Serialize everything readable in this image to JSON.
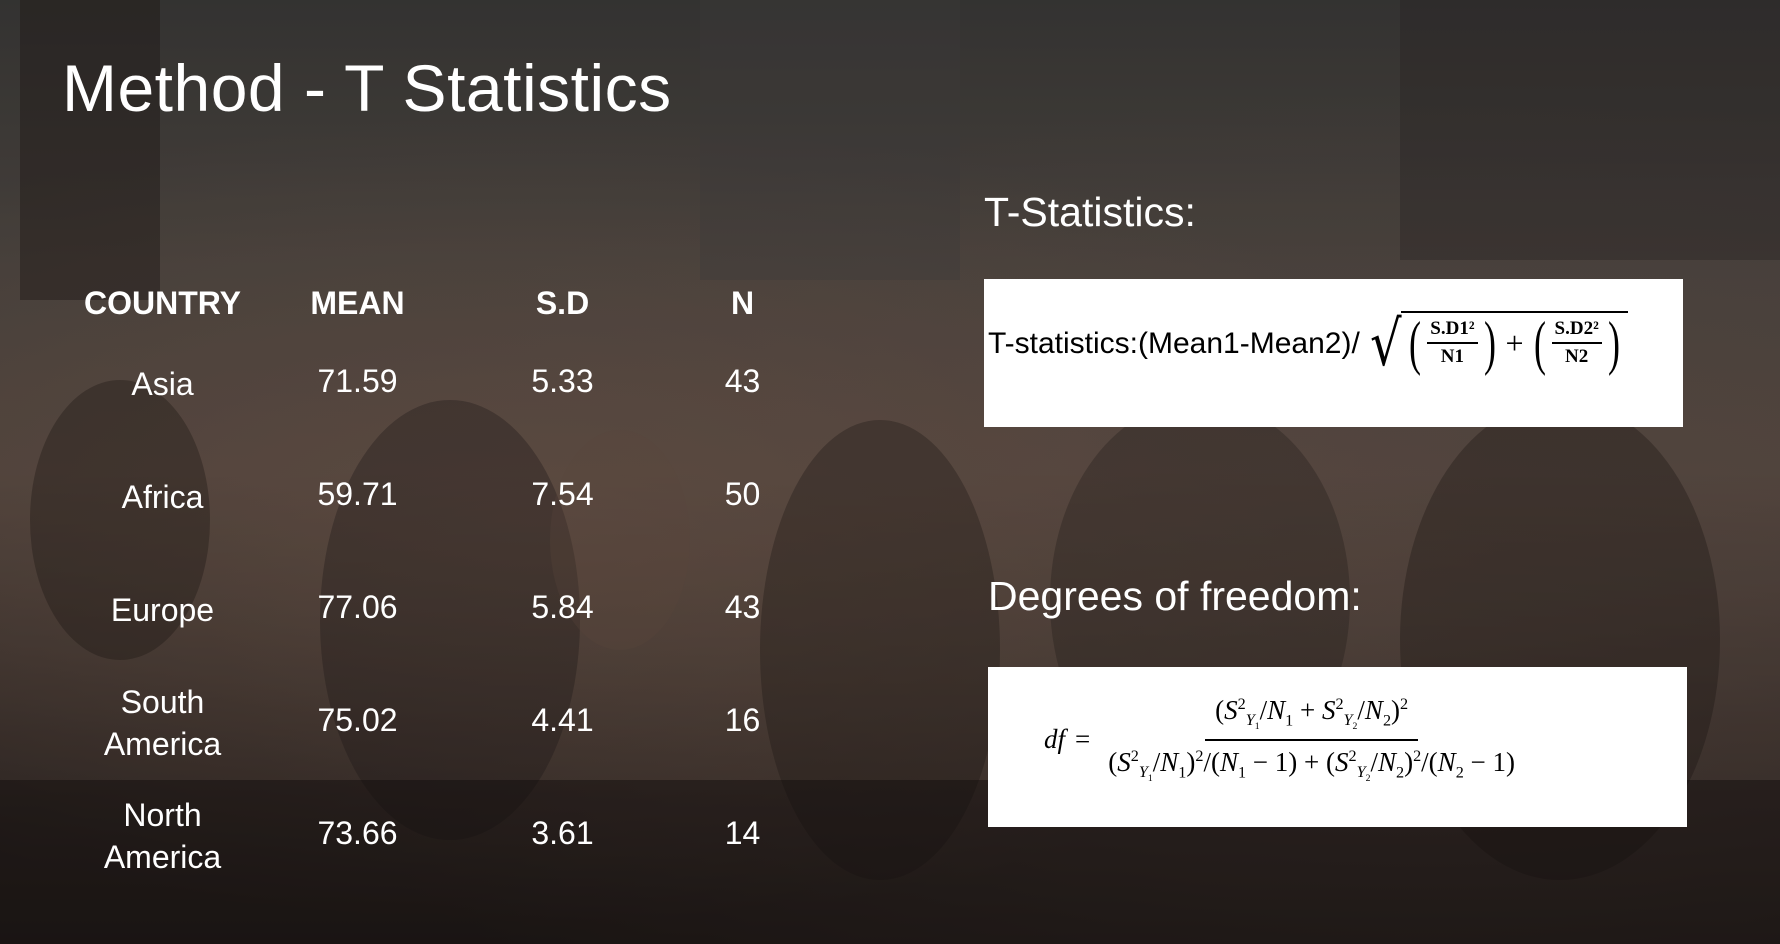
{
  "slide": {
    "title": "Method - T Statistics"
  },
  "table": {
    "headers": [
      "COUNTRY",
      "MEAN",
      "S.D",
      "N"
    ],
    "rows": [
      {
        "country_line1": "Asia",
        "country_line2": "",
        "mean": "71.59",
        "sd": "5.33",
        "n": "43"
      },
      {
        "country_line1": "Africa",
        "country_line2": "",
        "mean": "59.71",
        "sd": "7.54",
        "n": "50"
      },
      {
        "country_line1": "Europe",
        "country_line2": "",
        "mean": "77.06",
        "sd": "5.84",
        "n": "43"
      },
      {
        "country_line1": "South",
        "country_line2": "America",
        "mean": "75.02",
        "sd": "4.41",
        "n": "16"
      },
      {
        "country_line1": "North",
        "country_line2": "America",
        "mean": "73.66",
        "sd": "3.61",
        "n": "14"
      }
    ]
  },
  "tstat": {
    "heading": "T-Statistics:",
    "formula_prefix": "T-statistics:(Mean1-Mean2)/",
    "num1": "S.D1²",
    "den1": "N1",
    "num2": "S.D2²",
    "den2": "N2",
    "plus": "+"
  },
  "df": {
    "heading": "Degrees of freedom:",
    "lhs": "df",
    "equals": "="
  },
  "colors": {
    "text": "#ffffff",
    "formula_background": "#ffffff",
    "formula_text": "#000000"
  }
}
